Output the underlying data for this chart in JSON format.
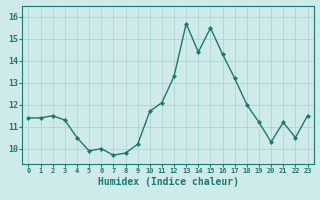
{
  "x": [
    0,
    1,
    2,
    3,
    4,
    5,
    6,
    7,
    8,
    9,
    10,
    11,
    12,
    13,
    14,
    15,
    16,
    17,
    18,
    19,
    20,
    21,
    22,
    23
  ],
  "y": [
    11.4,
    11.4,
    11.5,
    11.3,
    10.5,
    9.9,
    10.0,
    9.7,
    9.8,
    10.2,
    11.7,
    12.1,
    13.3,
    15.7,
    14.4,
    15.5,
    14.3,
    13.2,
    12.0,
    11.2,
    10.3,
    11.2,
    10.5,
    11.5
  ],
  "line_color": "#1a7a6e",
  "marker": "D",
  "marker_size": 2.0,
  "line_width": 1.0,
  "xlabel": "Humidex (Indice chaleur)",
  "xlabel_fontsize": 7,
  "ytick_labels": [
    "10",
    "11",
    "12",
    "13",
    "14",
    "15",
    "16"
  ],
  "ytick_values": [
    10,
    11,
    12,
    13,
    14,
    15,
    16
  ],
  "ylim": [
    9.3,
    16.5
  ],
  "xlim": [
    -0.5,
    23.5
  ],
  "bg_color": "#ceeaea",
  "grid_color": "#aad0d0",
  "tick_color": "#1a7a6e",
  "label_color": "#1a7a6e",
  "xtick_fontsize": 5,
  "ytick_fontsize": 6
}
